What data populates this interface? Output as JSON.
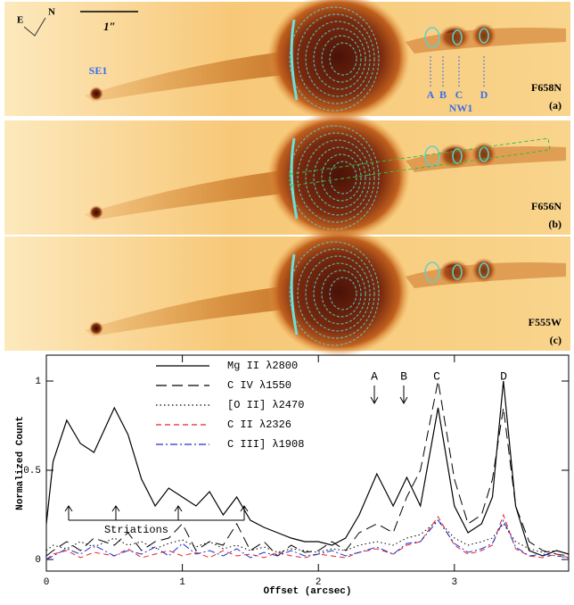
{
  "image_panels": [
    {
      "filter": "F658N",
      "label": "(a)"
    },
    {
      "filter": "F656N",
      "label": "(b)"
    },
    {
      "filter": "F555W",
      "label": "(c)"
    }
  ],
  "panel_annotations": {
    "east": "E",
    "north": "N",
    "scale": "1″",
    "se1": "SE1",
    "knots": [
      "A",
      "B",
      "C",
      "D"
    ],
    "nw1": "NW1"
  },
  "chart_data": {
    "type": "line",
    "xlabel": "Offset (arcsec)",
    "ylabel": "Normalized Count",
    "x": [
      0,
      0.05,
      0.15,
      0.25,
      0.35,
      0.5,
      0.6,
      0.7,
      0.8,
      0.9,
      1.0,
      1.1,
      1.2,
      1.3,
      1.4,
      1.5,
      1.6,
      1.7,
      1.8,
      1.9,
      2.0,
      2.1,
      2.2,
      2.3,
      2.43,
      2.55,
      2.65,
      2.75,
      2.88,
      3.0,
      3.1,
      3.2,
      3.28,
      3.36,
      3.45,
      3.55,
      3.65,
      3.75,
      3.84
    ],
    "series": [
      {
        "name": "Mg II λ2800",
        "color": "#000000",
        "dash": "solid",
        "values": [
          0.2,
          0.55,
          0.78,
          0.65,
          0.6,
          0.85,
          0.7,
          0.45,
          0.3,
          0.4,
          0.35,
          0.3,
          0.38,
          0.25,
          0.35,
          0.22,
          0.18,
          0.15,
          0.12,
          0.1,
          0.1,
          0.08,
          0.12,
          0.25,
          0.48,
          0.3,
          0.46,
          0.3,
          0.85,
          0.3,
          0.15,
          0.2,
          0.35,
          1.0,
          0.3,
          0.05,
          0.02,
          0.05,
          0.03
        ]
      },
      {
        "name": "C IV λ1550",
        "color": "#000000",
        "dash": "long-dash",
        "values": [
          0.02,
          0.05,
          0.1,
          0.05,
          0.12,
          0.08,
          0.15,
          0.05,
          0.1,
          0.12,
          0.2,
          0.05,
          0.1,
          0.08,
          0.2,
          0.05,
          0.1,
          0.02,
          0.08,
          0.04,
          0.05,
          0.1,
          0.05,
          0.15,
          0.2,
          0.15,
          0.35,
          0.5,
          1.0,
          0.45,
          0.2,
          0.25,
          0.45,
          0.85,
          0.3,
          0.1,
          0.05,
          0.03,
          0.02
        ]
      },
      {
        "name": "[O II] λ2470",
        "color": "#000000",
        "dash": "dotted",
        "values": [
          0.05,
          0.08,
          0.06,
          0.1,
          0.07,
          0.12,
          0.08,
          0.1,
          0.06,
          0.09,
          0.11,
          0.07,
          0.1,
          0.06,
          0.08,
          0.05,
          0.07,
          0.04,
          0.06,
          0.05,
          0.04,
          0.06,
          0.05,
          0.08,
          0.1,
          0.08,
          0.12,
          0.14,
          0.22,
          0.12,
          0.08,
          0.1,
          0.12,
          0.2,
          0.1,
          0.06,
          0.04,
          0.05,
          0.03
        ]
      },
      {
        "name": "C II λ2326",
        "color": "#e8202a",
        "dash": "dashed",
        "values": [
          0.0,
          0.03,
          0.05,
          0.01,
          0.04,
          0.02,
          0.06,
          0.01,
          0.03,
          0.05,
          0.02,
          0.04,
          0.01,
          0.05,
          0.02,
          0.03,
          0.01,
          0.04,
          0.02,
          0.01,
          0.03,
          0.02,
          0.01,
          0.04,
          0.06,
          0.03,
          0.08,
          0.1,
          0.24,
          0.08,
          0.03,
          0.05,
          0.08,
          0.25,
          0.06,
          0.02,
          0.01,
          0.03,
          0.01
        ]
      },
      {
        "name": "C III] λ1908",
        "color": "#2030c8",
        "dash": "dash-dot",
        "values": [
          0.0,
          0.02,
          0.06,
          0.03,
          0.08,
          0.02,
          0.05,
          0.03,
          0.07,
          0.02,
          0.09,
          0.03,
          0.05,
          0.02,
          0.06,
          0.01,
          0.04,
          0.02,
          0.05,
          0.02,
          0.03,
          0.05,
          0.02,
          0.04,
          0.07,
          0.03,
          0.09,
          0.1,
          0.22,
          0.09,
          0.04,
          0.06,
          0.09,
          0.22,
          0.07,
          0.02,
          0.03,
          0.02,
          0.01
        ]
      }
    ],
    "xlim": [
      0,
      3.84
    ],
    "ylim": [
      -0.065,
      1.145
    ],
    "xticks": [
      0,
      1,
      2,
      3
    ],
    "yticks": [
      0,
      0.5,
      1
    ],
    "annotations": [
      "A",
      "B",
      "C",
      "D"
    ],
    "striations_label": "Striations"
  }
}
